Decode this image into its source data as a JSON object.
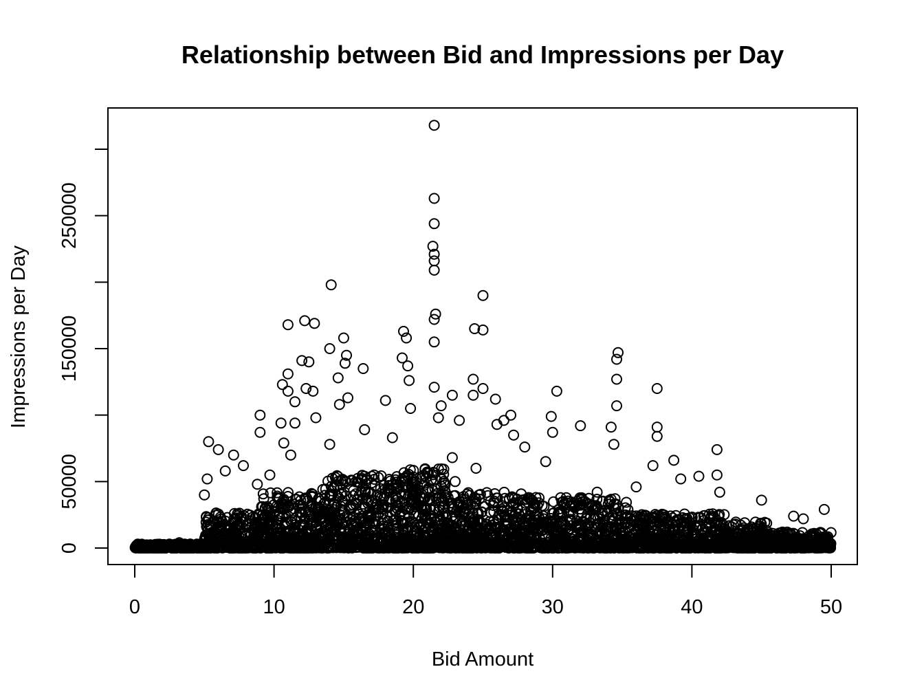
{
  "chart_data": {
    "type": "scatter",
    "title": "Relationship between Bid and Impressions per Day",
    "xlabel": "Bid Amount",
    "ylabel": "Impressions per Day",
    "xlim": [
      0,
      50
    ],
    "ylim": [
      0,
      300000
    ],
    "x_ticks": [
      0,
      10,
      20,
      30,
      40,
      50
    ],
    "x_tick_labels": [
      "0",
      "10",
      "20",
      "30",
      "40",
      "50"
    ],
    "y_ticks": [
      0,
      50000,
      100000,
      150000,
      200000,
      250000,
      300000
    ],
    "y_tick_labels": [
      "0",
      "50000",
      "",
      "150000",
      "",
      "250000",
      ""
    ],
    "grid": false,
    "legend": "none",
    "marker": "open-circle",
    "color": "#000000",
    "points": [
      [
        21.5,
        318000
      ],
      [
        21.5,
        263000
      ],
      [
        21.5,
        244000
      ],
      [
        21.4,
        227000
      ],
      [
        21.5,
        221000
      ],
      [
        21.5,
        216000
      ],
      [
        21.5,
        209000
      ],
      [
        14.1,
        198000
      ],
      [
        25.0,
        190000
      ],
      [
        21.6,
        176000
      ],
      [
        21.5,
        172000
      ],
      [
        12.2,
        171000
      ],
      [
        12.9,
        169000
      ],
      [
        11.0,
        168000
      ],
      [
        24.4,
        165000
      ],
      [
        25.0,
        164000
      ],
      [
        19.3,
        163000
      ],
      [
        19.5,
        158000
      ],
      [
        15.0,
        158000
      ],
      [
        21.5,
        155000
      ],
      [
        14.0,
        150000
      ],
      [
        34.7,
        147000
      ],
      [
        15.2,
        145000
      ],
      [
        19.2,
        143000
      ],
      [
        34.6,
        142000
      ],
      [
        12.0,
        141000
      ],
      [
        12.5,
        140000
      ],
      [
        15.1,
        139000
      ],
      [
        19.6,
        137000
      ],
      [
        16.4,
        135000
      ],
      [
        11.0,
        131000
      ],
      [
        14.6,
        128000
      ],
      [
        34.6,
        127000
      ],
      [
        24.3,
        127000
      ],
      [
        19.7,
        126000
      ],
      [
        10.6,
        123000
      ],
      [
        21.5,
        121000
      ],
      [
        12.3,
        120000
      ],
      [
        37.5,
        120000
      ],
      [
        25.0,
        120000
      ],
      [
        11.0,
        118000
      ],
      [
        12.8,
        118000
      ],
      [
        30.3,
        118000
      ],
      [
        24.3,
        115000
      ],
      [
        22.8,
        115000
      ],
      [
        15.3,
        113000
      ],
      [
        25.9,
        112000
      ],
      [
        18.0,
        111000
      ],
      [
        11.5,
        110000
      ],
      [
        14.7,
        108000
      ],
      [
        22.0,
        107000
      ],
      [
        34.6,
        107000
      ],
      [
        19.8,
        105000
      ],
      [
        27.0,
        100000
      ],
      [
        9.0,
        100000
      ],
      [
        29.9,
        99000
      ],
      [
        21.8,
        98000
      ],
      [
        13.0,
        98000
      ],
      [
        23.3,
        96000
      ],
      [
        26.5,
        96000
      ],
      [
        10.5,
        94000
      ],
      [
        11.5,
        94000
      ],
      [
        26.0,
        93000
      ],
      [
        32.0,
        92000
      ],
      [
        34.2,
        91000
      ],
      [
        37.5,
        91000
      ],
      [
        16.5,
        89000
      ],
      [
        9.0,
        87000
      ],
      [
        30.0,
        87000
      ],
      [
        27.2,
        85000
      ],
      [
        37.5,
        84000
      ],
      [
        18.5,
        83000
      ],
      [
        5.3,
        80000
      ],
      [
        10.7,
        79000
      ],
      [
        14.0,
        78000
      ],
      [
        34.4,
        78000
      ],
      [
        28.0,
        76000
      ],
      [
        41.8,
        74000
      ],
      [
        6.0,
        74000
      ],
      [
        7.1,
        70000
      ],
      [
        11.2,
        70000
      ],
      [
        22.8,
        68000
      ],
      [
        38.7,
        66000
      ],
      [
        29.5,
        65000
      ],
      [
        7.8,
        62000
      ],
      [
        37.2,
        62000
      ],
      [
        24.5,
        60000
      ],
      [
        6.5,
        58000
      ],
      [
        9.7,
        55000
      ],
      [
        40.5,
        54000
      ],
      [
        41.8,
        55000
      ],
      [
        5.2,
        52000
      ],
      [
        39.2,
        52000
      ],
      [
        23.0,
        50000
      ],
      [
        8.8,
        48000
      ],
      [
        36.0,
        46000
      ],
      [
        42.0,
        42000
      ],
      [
        5.0,
        40000
      ],
      [
        13.5,
        44000
      ],
      [
        33.2,
        42000
      ],
      [
        45.0,
        36000
      ],
      [
        28.8,
        38000
      ],
      [
        31.0,
        34000
      ],
      [
        10.5,
        30000
      ],
      [
        47.3,
        24000
      ],
      [
        49.5,
        29000
      ],
      [
        48.0,
        22000
      ],
      [
        43.5,
        14000
      ],
      [
        46.5,
        12000
      ],
      [
        3.2,
        4000
      ],
      [
        2.0,
        2500
      ],
      [
        1.0,
        1500
      ],
      [
        4.0,
        3000
      ]
    ],
    "dense_bands": [
      {
        "x0": 0.0,
        "x1": 5.0,
        "ymax": 3000
      },
      {
        "x0": 5.0,
        "x1": 9.0,
        "ymax": 28000
      },
      {
        "x0": 9.0,
        "x1": 13.5,
        "ymax": 42000
      },
      {
        "x0": 13.5,
        "x1": 19.0,
        "ymax": 55000
      },
      {
        "x0": 19.0,
        "x1": 22.5,
        "ymax": 60000
      },
      {
        "x0": 22.5,
        "x1": 28.0,
        "ymax": 42000
      },
      {
        "x0": 28.0,
        "x1": 35.5,
        "ymax": 38000
      },
      {
        "x0": 35.5,
        "x1": 42.5,
        "ymax": 26000
      },
      {
        "x0": 42.5,
        "x1": 45.5,
        "ymax": 20000
      },
      {
        "x0": 45.5,
        "x1": 50.0,
        "ymax": 12000
      }
    ]
  }
}
